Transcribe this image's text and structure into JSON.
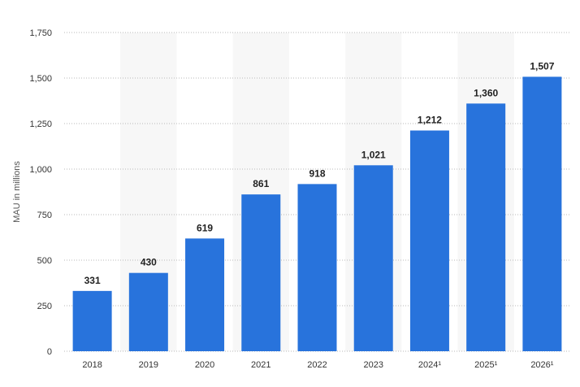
{
  "chart_data": {
    "type": "bar",
    "title": "",
    "xlabel": "",
    "ylabel": "MAU in millions",
    "categories": [
      "2018",
      "2019",
      "2020",
      "2021",
      "2022",
      "2023",
      "2024¹",
      "2025¹",
      "2026¹"
    ],
    "values": [
      331,
      430,
      619,
      861,
      918,
      1021,
      1212,
      1360,
      1507
    ],
    "value_labels": [
      "331",
      "430",
      "619",
      "861",
      "918",
      "1,021",
      "1,212",
      "1,360",
      "1,507"
    ],
    "ylim": [
      0,
      1750
    ],
    "yticks": [
      0,
      250,
      500,
      750,
      1000,
      1250,
      1500,
      1750
    ],
    "ytick_labels": [
      "0",
      "250",
      "500",
      "750",
      "1,000",
      "1,250",
      "1,500",
      "1,750"
    ],
    "grid": true,
    "bar_color": "#2873dc",
    "alt_band_color": "#f7f7f7"
  }
}
